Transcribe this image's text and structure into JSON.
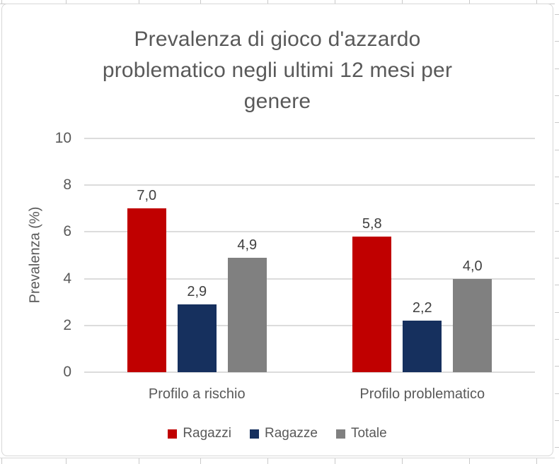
{
  "sheet": {
    "type": "excel-spreadsheet-background"
  },
  "chart_data": {
    "type": "bar",
    "title": "Prevalenza di gioco d'azzardo problematico negli ultimi 12 mesi per genere",
    "title_lines": [
      "Prevalenza di gioco d'azzardo",
      "problematico negli ultimi 12 mesi per",
      "genere"
    ],
    "ylabel": "Prevalenza (%)",
    "xlabel": "",
    "ylim": [
      0,
      10
    ],
    "yticks": [
      0,
      2,
      4,
      6,
      8,
      10
    ],
    "grid": true,
    "legend_position": "bottom",
    "categories": [
      "Profilo a rischio",
      "Profilo problematico"
    ],
    "series": [
      {
        "name": "Ragazzi",
        "color": "#C00000",
        "values": [
          7.0,
          5.8
        ],
        "value_labels": [
          "7,0",
          "5,8"
        ]
      },
      {
        "name": "Ragazze",
        "color": "#16305E",
        "values": [
          2.9,
          2.2
        ],
        "value_labels": [
          "2,9",
          "2,2"
        ]
      },
      {
        "name": "Totale",
        "color": "#808080",
        "values": [
          4.9,
          4.0
        ],
        "value_labels": [
          "4,9",
          "4,0"
        ]
      }
    ],
    "colors": {
      "title_text": "#595959",
      "axis_text": "#595959",
      "data_label_text": "#404040",
      "gridline": "#DCDCDC",
      "chart_border": "#D7D7D7",
      "sheet_gridline": "#C9C9C9"
    }
  }
}
